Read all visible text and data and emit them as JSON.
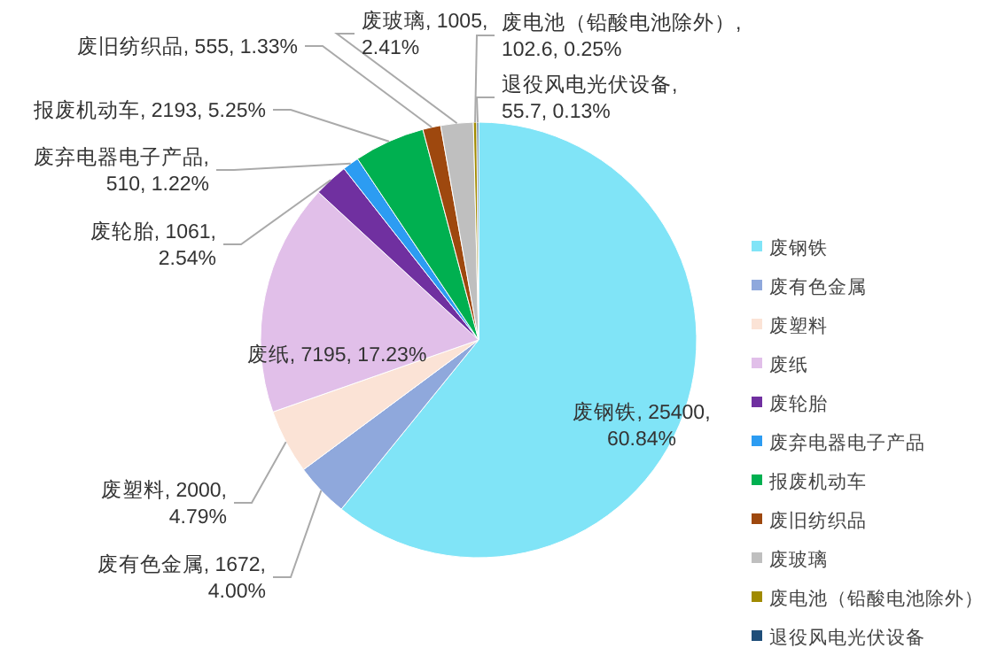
{
  "chart_data": {
    "type": "pie",
    "categories": [
      "废钢铁",
      "废有色金属",
      "废塑料",
      "废纸",
      "废轮胎",
      "废弃电器电子产品",
      "报废机动车",
      "废旧纺织品",
      "废玻璃",
      "废电池（铅酸电池除外）",
      "退役风电光伏设备"
    ],
    "values": [
      25400,
      1672,
      2000,
      7195,
      1061,
      510,
      2193,
      555,
      1005,
      102.6,
      55.7
    ],
    "value_labels": [
      ", 25400,\n60.84%",
      ", 1672,\n4.00%",
      ", 2000,\n4.79%",
      ", 7195, 17.23%",
      ", 1061,\n2.54%",
      ",\n510, 1.22%",
      ", 2193, 5.25%",
      ", 555, 1.33%",
      ", 1005,\n2.41%",
      ",\n102.6, 0.25%",
      ",\n55.7, 0.13%"
    ],
    "colors": [
      "#80e4f7",
      "#8fa8dc",
      "#fbe3d6",
      "#e1bfe9",
      "#7030a0",
      "#2c9cf2",
      "#00b050",
      "#9e480e",
      "#bfbfbf",
      "#a08a00",
      "#1f4e79"
    ],
    "legend": "right"
  }
}
